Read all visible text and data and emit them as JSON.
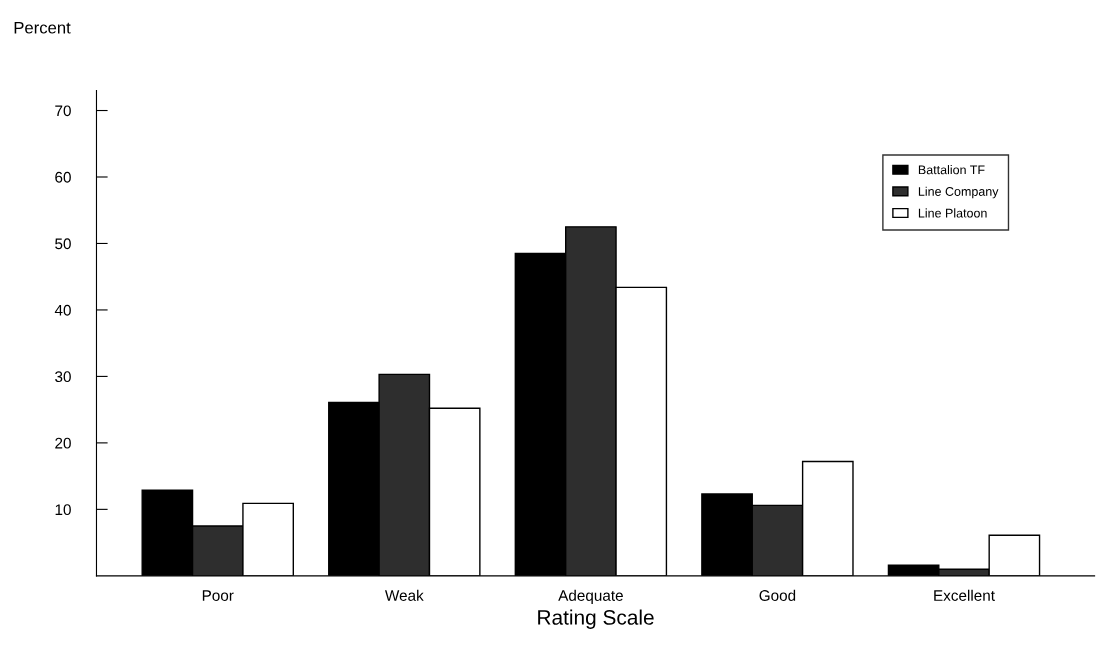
{
  "chart_data": {
    "type": "bar",
    "ylabel": "Percent",
    "xlabel": "Rating Scale",
    "categories": [
      "Poor",
      "Weak",
      "Adequate",
      "Good",
      "Excellent"
    ],
    "series": [
      {
        "name": "Battalion TF",
        "color": "#000000",
        "values": [
          12.9,
          26.1,
          48.5,
          12.3,
          1.6
        ]
      },
      {
        "name": "Line Company",
        "color": "#2e2e2e",
        "values": [
          7.5,
          30.3,
          52.5,
          10.6,
          1.0
        ]
      },
      {
        "name": "Line Platoon",
        "color": "#ffffff",
        "values": [
          10.9,
          25.2,
          43.4,
          17.2,
          6.1
        ]
      }
    ],
    "ylim": [
      0,
      73
    ],
    "yticks": [
      10,
      20,
      30,
      40,
      50,
      60,
      70
    ],
    "grid": false,
    "legend": "top right"
  }
}
